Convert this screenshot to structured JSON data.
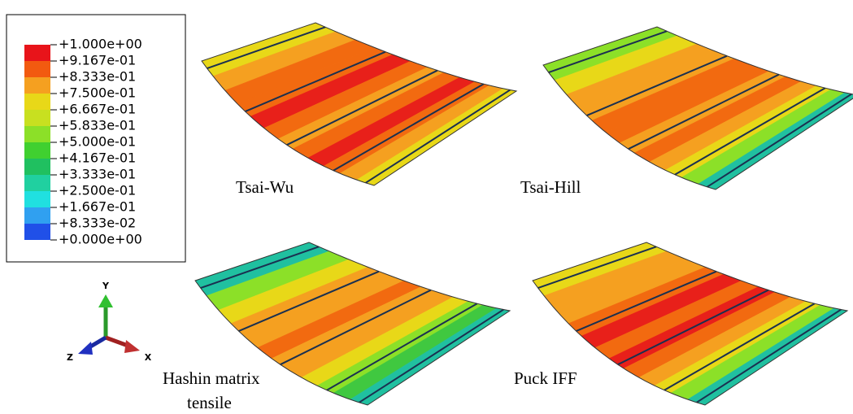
{
  "legend": {
    "labels": [
      "+1.000e+00",
      "+9.167e-01",
      "+8.333e-01",
      "+7.500e-01",
      "+6.667e-01",
      "+5.833e-01",
      "+5.000e-01",
      "+4.167e-01",
      "+3.333e-01",
      "+2.500e-01",
      "+1.667e-01",
      "+8.333e-02",
      "+0.000e+00"
    ]
  },
  "panels": [
    {
      "label": [
        "Tsai-Wu"
      ]
    },
    {
      "label": [
        "Tsai-Hill"
      ]
    },
    {
      "label": [
        "Hashin matrix",
        "tensile"
      ]
    },
    {
      "label": [
        "Puck IFF"
      ]
    }
  ],
  "triad": {
    "y": "Y",
    "x": "X",
    "z": "Z"
  }
}
